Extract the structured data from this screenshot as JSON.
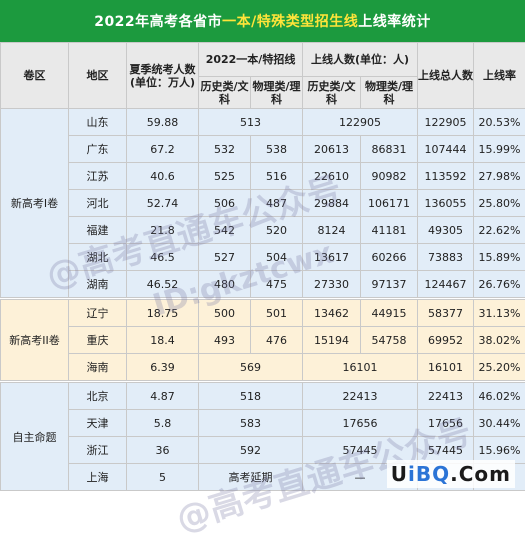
{
  "title": {
    "prefix": "2022年高考各省市",
    "highlight": "一本/特殊类型招生线",
    "suffix": "上线率统计"
  },
  "header": {
    "col_region_group": "卷区",
    "col_region": "地区",
    "col_candidates": "夏季统考人数(单位：万人)",
    "col_cutoff": "2022一本/特招线",
    "col_admitted": "上线人数(单位：人)",
    "col_total": "上线总人数",
    "col_rate": "上线率",
    "sub_history": "历史类/文科",
    "sub_physics": "物理类/理科"
  },
  "groups": [
    {
      "name": "新高考I卷",
      "rows": [
        {
          "region": "山东",
          "candidates": "59.88",
          "cutoff": "513",
          "admitted": "122905",
          "total": "122905",
          "rate": "20.53%"
        },
        {
          "region": "广东",
          "candidates": "67.2",
          "cutoff_h": "532",
          "cutoff_p": "538",
          "admitted_h": "20613",
          "admitted_p": "86831",
          "total": "107444",
          "rate": "15.99%"
        },
        {
          "region": "江苏",
          "candidates": "40.6",
          "cutoff_h": "525",
          "cutoff_p": "516",
          "admitted_h": "22610",
          "admitted_p": "90982",
          "total": "113592",
          "rate": "27.98%"
        },
        {
          "region": "河北",
          "candidates": "52.74",
          "cutoff_h": "506",
          "cutoff_p": "487",
          "admitted_h": "29884",
          "admitted_p": "106171",
          "total": "136055",
          "rate": "25.80%"
        },
        {
          "region": "福建",
          "candidates": "21.8",
          "cutoff_h": "542",
          "cutoff_p": "520",
          "admitted_h": "8124",
          "admitted_p": "41181",
          "total": "49305",
          "rate": "22.62%"
        },
        {
          "region": "湖北",
          "candidates": "46.5",
          "cutoff_h": "527",
          "cutoff_p": "504",
          "admitted_h": "13617",
          "admitted_p": "60266",
          "total": "73883",
          "rate": "15.89%"
        },
        {
          "region": "湖南",
          "candidates": "46.52",
          "cutoff_h": "480",
          "cutoff_p": "475",
          "admitted_h": "27330",
          "admitted_p": "97137",
          "total": "124467",
          "rate": "26.76%"
        }
      ]
    },
    {
      "name": "新高考II卷",
      "rows": [
        {
          "region": "辽宁",
          "candidates": "18.75",
          "cutoff_h": "500",
          "cutoff_p": "501",
          "admitted_h": "13462",
          "admitted_p": "44915",
          "total": "58377",
          "rate": "31.13%"
        },
        {
          "region": "重庆",
          "candidates": "18.4",
          "cutoff_h": "493",
          "cutoff_p": "476",
          "admitted_h": "15194",
          "admitted_p": "54758",
          "total": "69952",
          "rate": "38.02%"
        },
        {
          "region": "海南",
          "candidates": "6.39",
          "cutoff": "569",
          "admitted": "16101",
          "total": "16101",
          "rate": "25.20%"
        }
      ]
    },
    {
      "name": "自主命题",
      "rows": [
        {
          "region": "北京",
          "candidates": "4.87",
          "cutoff": "518",
          "admitted": "22413",
          "total": "22413",
          "rate": "46.02%"
        },
        {
          "region": "天津",
          "candidates": "5.8",
          "cutoff": "583",
          "admitted": "17656",
          "total": "17656",
          "rate": "30.44%"
        },
        {
          "region": "浙江",
          "candidates": "36",
          "cutoff": "592",
          "admitted": "57445",
          "total": "57445",
          "rate": "15.96%"
        },
        {
          "region": "上海",
          "candidates": "5",
          "cutoff": "高考延期",
          "admitted": "—",
          "total": "",
          "rate": ""
        }
      ]
    }
  ],
  "watermark": {
    "line1": "@高考直通车公众号",
    "line2": "ID:gkztcwx"
  },
  "logo": {
    "prefix": "U",
    "mid": "iBQ",
    "suffix": ".Com"
  },
  "colors": {
    "title_bg": "#1c9a3e",
    "title_highlight": "#ffe43a",
    "group1_bg": "#e2edf8",
    "group2_bg": "#fdf1d8",
    "group3_bg": "#e2edf8",
    "header_bg": "#e9e9e9"
  }
}
